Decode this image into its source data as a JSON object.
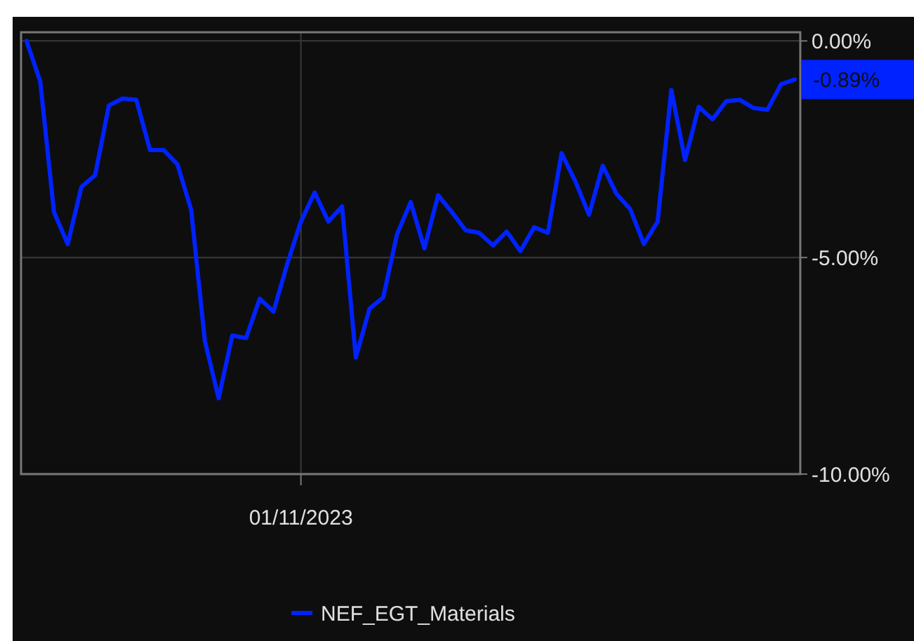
{
  "chart_data": {
    "type": "line",
    "categories": [
      null,
      null,
      null,
      null,
      null,
      null,
      null,
      null,
      null,
      null,
      null,
      null,
      null,
      null,
      null,
      null,
      null,
      null,
      null,
      null,
      "01/11/2023",
      null,
      null,
      null,
      null,
      null,
      null,
      null,
      null,
      null,
      null,
      null,
      null,
      null,
      null,
      null,
      null,
      null,
      null,
      null,
      null,
      null,
      null,
      null,
      null,
      null,
      null,
      null,
      null,
      null,
      null,
      null,
      null,
      null,
      null,
      null,
      null
    ],
    "series": [
      {
        "name": "NEF_EGT_Materials",
        "color": "#0022ff",
        "values": [
          0.0,
          -0.94,
          -3.95,
          -4.69,
          -3.37,
          -3.1,
          -1.49,
          -1.33,
          -1.36,
          -2.52,
          -2.52,
          -2.85,
          -3.9,
          -6.93,
          -8.25,
          -6.8,
          -6.86,
          -5.95,
          -6.25,
          -5.15,
          -4.17,
          -3.5,
          -4.17,
          -3.82,
          -7.31,
          -6.18,
          -5.92,
          -4.47,
          -3.72,
          -4.79,
          -3.56,
          -3.95,
          -4.37,
          -4.43,
          -4.72,
          -4.4,
          -4.85,
          -4.3,
          -4.43,
          -2.59,
          -3.24,
          -4.01,
          -2.88,
          -3.53,
          -3.88,
          -4.69,
          -4.17,
          -1.13,
          -2.75,
          -1.52,
          -1.81,
          -1.39,
          -1.36,
          -1.55,
          -1.59,
          -1.0,
          -0.89
        ]
      }
    ],
    "ylim": [
      -10,
      0.2
    ],
    "yticks": [
      {
        "value": 0,
        "label": "0.00%"
      },
      {
        "value": -5,
        "label": "-5.00%"
      },
      {
        "value": -10,
        "label": "-10.00%"
      }
    ],
    "annotations": [
      "-0.89%"
    ],
    "grid": true,
    "legend": "bottom",
    "marker": "none",
    "line_style": "solid"
  }
}
